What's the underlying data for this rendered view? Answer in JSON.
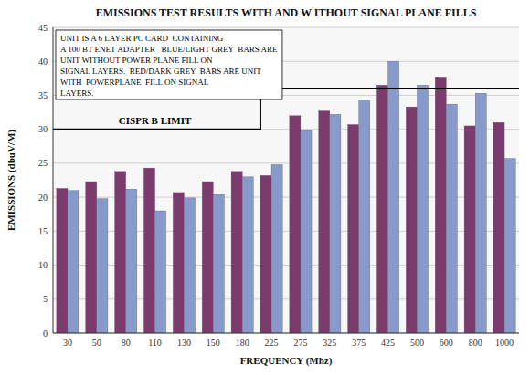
{
  "chart_data": {
    "type": "bar",
    "title": "EMISSIONS TEST RESULTS WITH AND W ITHOUT SIGNAL PLANE FILLS",
    "x_label": "FREQUENCY (Mhz)",
    "y_label": "EMISSIONS (dbuV/M)",
    "categories": [
      "30",
      "50",
      "80",
      "110",
      "130",
      "150",
      "180",
      "225",
      "275",
      "325",
      "375",
      "425",
      "500",
      "600",
      "800",
      "1000"
    ],
    "series": [
      {
        "color": "#7B3B6E",
        "values": [
          21.3,
          22.3,
          23.8,
          24.3,
          20.7,
          22.3,
          23.8,
          23.2,
          32.0,
          32.7,
          30.7,
          36.5,
          33.3,
          37.7,
          30.5,
          31.0
        ]
      },
      {
        "color": "#8899CC",
        "values": [
          21.0,
          19.8,
          21.2,
          18.0,
          19.9,
          20.4,
          23.0,
          24.8,
          29.8,
          32.2,
          34.2,
          40.0,
          36.5,
          33.7,
          35.3,
          25.7
        ]
      }
    ],
    "limit": {
      "label": "CISPR B LIMIT",
      "y_low": 30,
      "y_high": 36,
      "step_at": "225"
    },
    "annotation": "UNIT IS A 6 LAYER PC CARD  CONTAINING\nA 100 BT ENET ADAPTER   BLUE/LIGHT GREY  BARS ARE\nUNIT WITHOUT POWER PLANE FILL ON\nSIGNAL LAYERS.  RED/DARK GREY  BARS ARE UNIT\nWITH  POWERPLANE  FILL ON SIGNAL\nLAYERS.",
    "ylim": [
      0,
      45
    ],
    "yticks": [
      0,
      5,
      10,
      15,
      20,
      25,
      30,
      35,
      40,
      45
    ],
    "grid": true
  }
}
